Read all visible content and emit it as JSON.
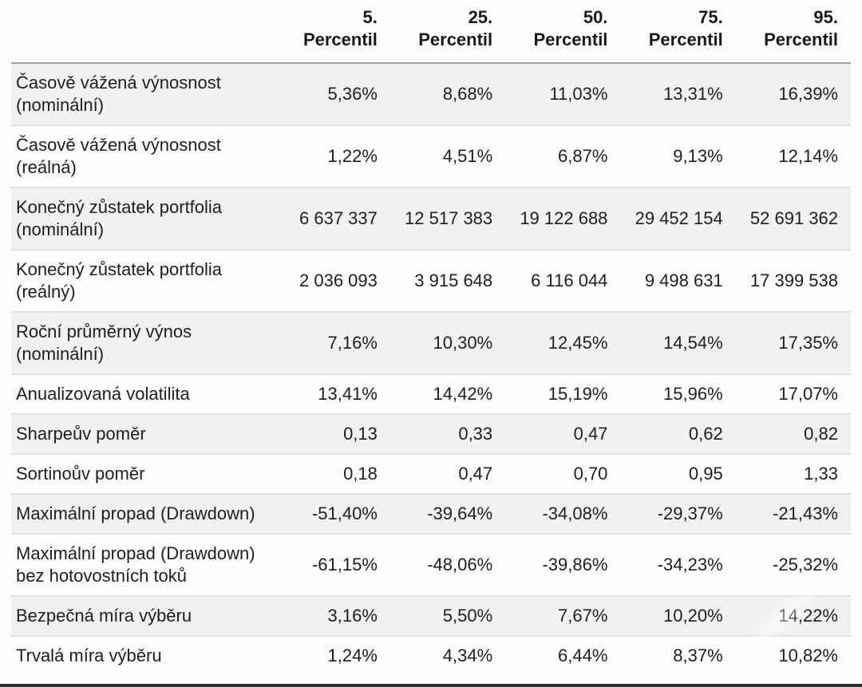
{
  "table": {
    "corner_label": "",
    "header": {
      "columns": [
        {
          "number": "5.",
          "label": "Percentil"
        },
        {
          "number": "25.",
          "label": "Percentil"
        },
        {
          "number": "50.",
          "label": "Percentil"
        },
        {
          "number": "75.",
          "label": "Percentil"
        },
        {
          "number": "95.",
          "label": "Percentil"
        }
      ]
    },
    "rows": [
      {
        "label": "Časově vážená výnosnost (nominální)",
        "values": [
          "5,36%",
          "8,68%",
          "11,03%",
          "13,31%",
          "16,39%"
        ]
      },
      {
        "label": "Časově vážená výnosnost (reálná)",
        "values": [
          "1,22%",
          "4,51%",
          "6,87%",
          "9,13%",
          "12,14%"
        ]
      },
      {
        "label": "Konečný zůstatek portfolia (nominální)",
        "values": [
          "6 637 337",
          "12 517 383",
          "19 122 688",
          "29 452 154",
          "52 691 362"
        ]
      },
      {
        "label": "Konečný zůstatek portfolia (reálný)",
        "values": [
          "2 036 093",
          "3 915 648",
          "6 116 044",
          "9 498 631",
          "17 399 538"
        ]
      },
      {
        "label": "Roční průměrný výnos (nominální)",
        "values": [
          "7,16%",
          "10,30%",
          "12,45%",
          "14,54%",
          "17,35%"
        ]
      },
      {
        "label": "Anualizovaná volatilita",
        "values": [
          "13,41%",
          "14,42%",
          "15,19%",
          "15,96%",
          "17,07%"
        ]
      },
      {
        "label": "Sharpeův poměr",
        "values": [
          "0,13",
          "0,33",
          "0,47",
          "0,62",
          "0,82"
        ]
      },
      {
        "label": "Sortinoův poměr",
        "values": [
          "0,18",
          "0,47",
          "0,70",
          "0,95",
          "1,33"
        ]
      },
      {
        "label": "Maximální propad (Drawdown)",
        "values": [
          "-51,40%",
          "-39,64%",
          "-34,08%",
          "-29,37%",
          "-21,43%"
        ]
      },
      {
        "label": "Maximální propad (Drawdown) bez hotovostních toků",
        "values": [
          "-61,15%",
          "-48,06%",
          "-39,86%",
          "-34,23%",
          "-25,32%"
        ]
      },
      {
        "label": "Bezpečná míra výběru",
        "values": [
          "3,16%",
          "5,50%",
          "7,67%",
          "10,20%",
          "14,22%"
        ]
      },
      {
        "label": "Trvalá míra výběru",
        "values": [
          "1,24%",
          "4,34%",
          "6,44%",
          "8,37%",
          "10,82%"
        ]
      }
    ]
  },
  "colors": {
    "stripe_row": "#f2f1ef",
    "plain_row": "#fdfdfd",
    "row_separator": "#dde1e4",
    "header_rule": "#9fa1a3",
    "bottom_edge": "#303030",
    "text": "#1e1e1e"
  }
}
